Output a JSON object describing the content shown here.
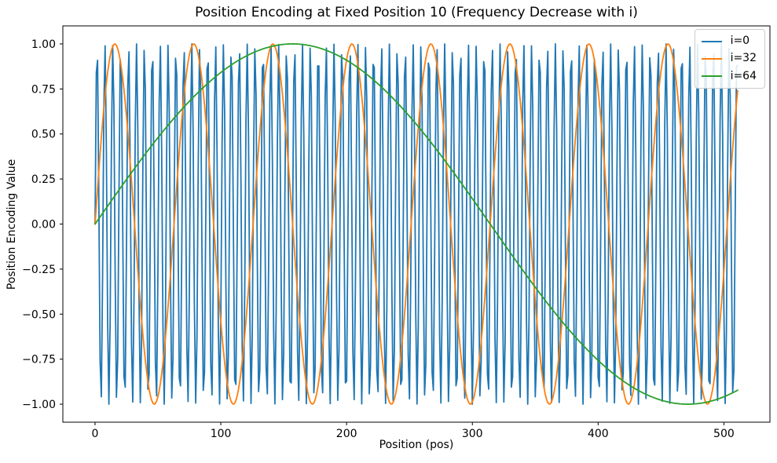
{
  "chart_data": {
    "type": "line",
    "title": "Position Encoding at Fixed Position 10 (Frequency Decrease with i)",
    "xlabel": "Position (pos)",
    "ylabel": "Position Encoding Value",
    "x": {
      "name": "pos",
      "start": 0,
      "stop": 511,
      "step": 1
    },
    "num_points": 512,
    "xlim": [
      -25.6,
      536.6
    ],
    "ylim": [
      -1.1,
      1.1
    ],
    "xticks": [
      0,
      100,
      200,
      300,
      400,
      500
    ],
    "yticks": [
      -1.0,
      -0.75,
      -0.5,
      -0.25,
      0.0,
      0.25,
      0.5,
      0.75,
      1.0
    ],
    "ytick_labels": [
      "−1.00",
      "−0.75",
      "−0.50",
      "−0.25",
      "0.00",
      "0.25",
      "0.50",
      "0.75",
      "1.00"
    ],
    "grid": false,
    "background": "#ffffff",
    "axes_edge_color": "#000000",
    "legend": {
      "position": "upper right",
      "entries": [
        "i=0",
        "i=32",
        "i=64"
      ]
    },
    "series": [
      {
        "name": "i=0",
        "color": "#1f77b4",
        "formula": "sin(pos / 1)",
        "wavelength_divisor": 1,
        "amplitude": 1
      },
      {
        "name": "i=32",
        "color": "#ff7f0e",
        "formula": "sin(pos / 10)",
        "wavelength_divisor": 10,
        "amplitude": 1
      },
      {
        "name": "i=64",
        "color": "#2ca02c",
        "formula": "sin(pos / 100)",
        "wavelength_divisor": 100,
        "amplitude": 1
      }
    ],
    "line_width": 1.8
  }
}
